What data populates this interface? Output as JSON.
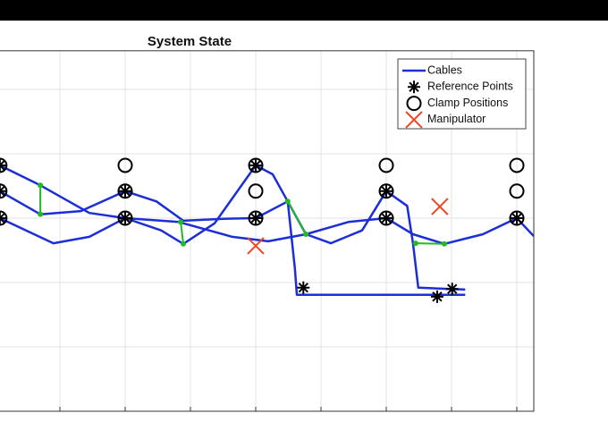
{
  "chart_data": {
    "type": "line",
    "title": "System State",
    "xlim": [
      0,
      8.26
    ],
    "ylim": [
      -3,
      2.6
    ],
    "xticks": [
      1,
      2,
      3,
      4,
      5,
      6,
      7,
      8
    ],
    "yticks": [
      -2,
      -1,
      0,
      1,
      2
    ],
    "grid": true,
    "legend": "upper right",
    "series": [
      {
        "name": "Cables",
        "color": "#1c2ed6",
        "lines": [
          {
            "x": [
              0.08,
              0.7,
              1.45,
              2.0,
              2.82,
              3.64,
              4.19,
              4.77,
              5.42,
              6.0,
              6.41,
              6.89,
              7.48,
              8.0,
              8.26
            ],
            "values": [
              0.82,
              0.51,
              0.08,
              0,
              -0.06,
              -0.29,
              -0.36,
              -0.25,
              -0.06,
              0,
              -0.25,
              -0.4,
              -0.25,
              0,
              -0.28
            ]
          },
          {
            "x": [
              0.08,
              0.7,
              1.32,
              2.0,
              2.48,
              2.89,
              3.51,
              4.0,
              4.49,
              4.77,
              5.15,
              5.63,
              6.0,
              6.32,
              6.41,
              6.49,
              7.21
            ],
            "values": [
              0.42,
              0.06,
              0.11,
              0.42,
              0.26,
              -0.04,
              -0.01,
              0,
              0.26,
              -0.25,
              -0.39,
              -0.19,
              0.42,
              0.19,
              -0.39,
              -1.08,
              -1.11
            ]
          },
          {
            "x": [
              0.08,
              0.9,
              1.45,
              2.0,
              2.55,
              2.89,
              3.37,
              4.0,
              4.26,
              4.49,
              4.6,
              4.63,
              4.81,
              7.21
            ],
            "values": [
              0,
              -0.39,
              -0.29,
              0,
              -0.19,
              -0.4,
              -0.08,
              0.82,
              0.68,
              0.26,
              -0.78,
              -1.19,
              -1.19,
              -1.19
            ]
          }
        ]
      },
      {
        "name": "Reference Points",
        "color": "#000000",
        "marker": "asterisk",
        "x": [
          0.08,
          0.08,
          0.08,
          2,
          2,
          4,
          4,
          6,
          6,
          8,
          4.73,
          6.78,
          7.01
        ],
        "values": [
          0.82,
          0.42,
          0,
          0.42,
          0,
          0.82,
          0,
          0.42,
          0,
          0,
          -1.08,
          -1.22,
          -1.1
        ]
      },
      {
        "name": "Clamp Positions",
        "color": "#000000",
        "marker": "circle",
        "x": [
          0.08,
          0.08,
          0.08,
          2,
          2,
          2,
          4,
          4,
          4,
          6,
          6,
          6,
          8,
          8,
          8
        ],
        "values": [
          0.82,
          0.42,
          0,
          0.82,
          0.42,
          0,
          0.82,
          0.42,
          0,
          0.82,
          0.42,
          0,
          0.82,
          0.42,
          0
        ]
      },
      {
        "name": "Manipulator",
        "color": "#ee4422",
        "marker": "x",
        "x": [
          4.0,
          6.82
        ],
        "values": [
          -0.43,
          0.18
        ]
      }
    ],
    "connectors": {
      "color": "#22bb22",
      "lines": [
        {
          "x": [
            0.7,
            0.7
          ],
          "values": [
            0.51,
            0.06
          ]
        },
        {
          "x": [
            2.85,
            2.89
          ],
          "values": [
            -0.06,
            -0.4
          ]
        },
        {
          "x": [
            4.49,
            4.77
          ],
          "values": [
            0.26,
            -0.25
          ]
        },
        {
          "x": [
            6.45,
            6.89
          ],
          "values": [
            -0.39,
            -0.4
          ]
        }
      ]
    }
  }
}
